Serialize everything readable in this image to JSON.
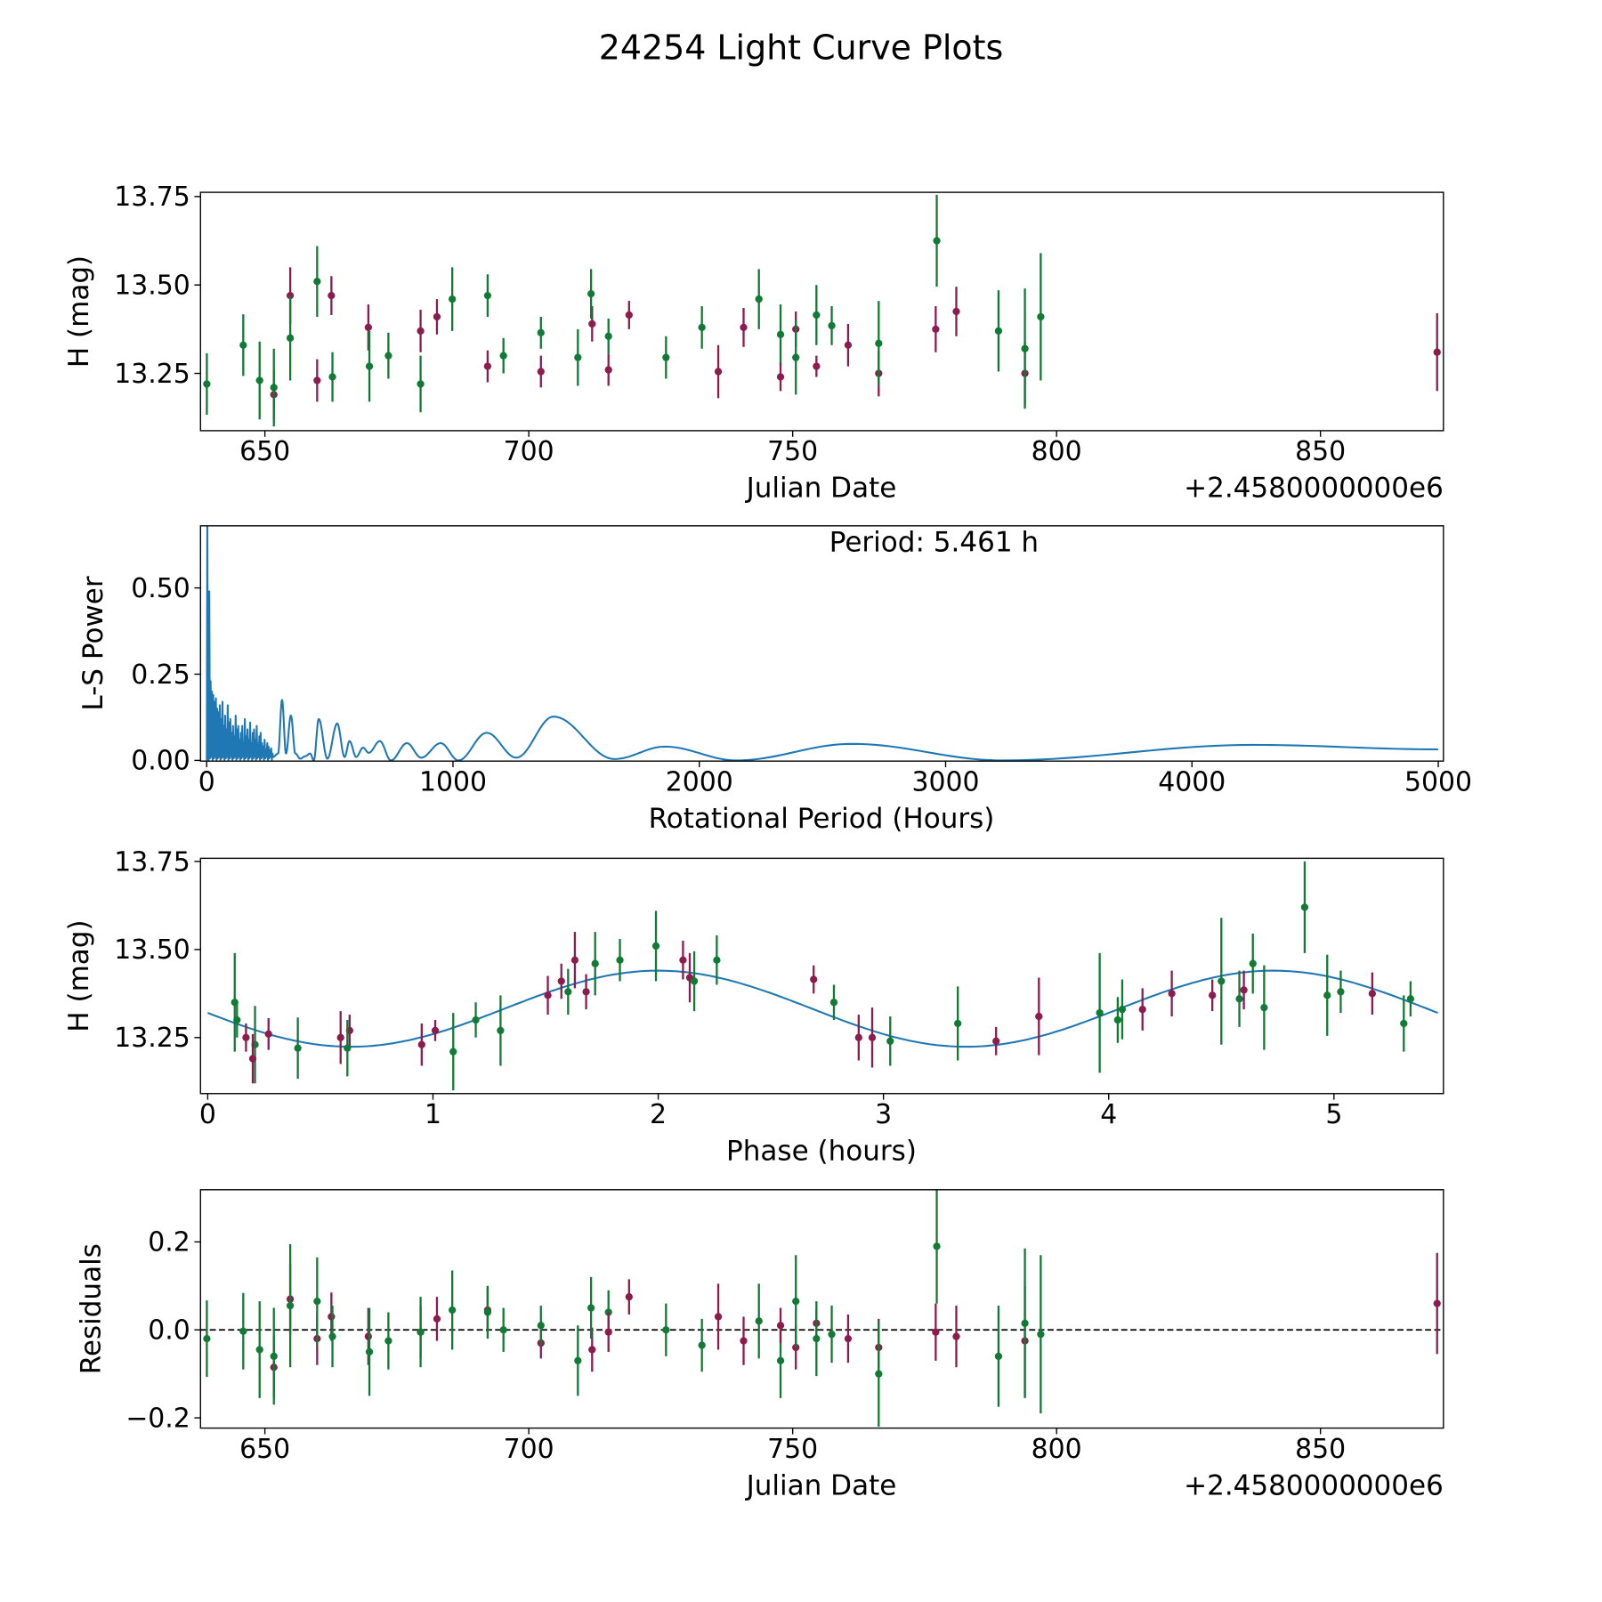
{
  "title": "24254 Light Curve Plots",
  "colors": {
    "green": "#117a35",
    "maroon": "#8c1b4e",
    "fit": "#1f77b4",
    "periodogram": "#1f77b4"
  },
  "chart_data": [
    {
      "type": "scatter",
      "name": "light-curve",
      "xlabel": "Julian Date",
      "ylabel": "H (mag)",
      "x_offset_label": "+2.4580000000e6",
      "xlim": [
        637.8,
        873.3
      ],
      "ylim": [
        13.088,
        13.762
      ],
      "xticks": [
        {
          "v": 650,
          "label": "650"
        },
        {
          "v": 700,
          "label": "700"
        },
        {
          "v": 750,
          "label": "750"
        },
        {
          "v": 800,
          "label": "800"
        },
        {
          "v": 850,
          "label": "850"
        }
      ],
      "yticks": [
        {
          "v": 13.25,
          "label": "13.25"
        },
        {
          "v": 13.5,
          "label": "13.50"
        },
        {
          "v": 13.75,
          "label": "13.75"
        }
      ],
      "points": [
        [
          639.0,
          13.22,
          0.087,
          "g"
        ],
        [
          645.9,
          13.33,
          0.087,
          "g"
        ],
        [
          649.0,
          13.23,
          0.11,
          "g"
        ],
        [
          651.7,
          13.19,
          0.07,
          "m"
        ],
        [
          651.7,
          13.21,
          0.11,
          "g"
        ],
        [
          654.8,
          13.47,
          0.08,
          "m"
        ],
        [
          654.8,
          13.35,
          0.12,
          "g"
        ],
        [
          659.9,
          13.23,
          0.06,
          "m"
        ],
        [
          659.9,
          13.51,
          0.1,
          "g"
        ],
        [
          662.6,
          13.47,
          0.055,
          "m"
        ],
        [
          662.8,
          13.24,
          0.07,
          "g"
        ],
        [
          669.6,
          13.38,
          0.065,
          "m"
        ],
        [
          669.8,
          13.27,
          0.1,
          "g"
        ],
        [
          673.4,
          13.3,
          0.065,
          "g"
        ],
        [
          679.5,
          13.37,
          0.06,
          "m"
        ],
        [
          679.5,
          13.22,
          0.08,
          "g"
        ],
        [
          682.6,
          13.41,
          0.05,
          "m"
        ],
        [
          685.5,
          13.46,
          0.09,
          "g"
        ],
        [
          692.2,
          13.27,
          0.045,
          "m"
        ],
        [
          692.2,
          13.47,
          0.06,
          "g"
        ],
        [
          695.2,
          13.3,
          0.05,
          "g"
        ],
        [
          702.3,
          13.255,
          0.045,
          "m"
        ],
        [
          702.3,
          13.365,
          0.045,
          "g"
        ],
        [
          709.3,
          13.295,
          0.08,
          "g"
        ],
        [
          712.0,
          13.39,
          0.05,
          "m"
        ],
        [
          711.8,
          13.475,
          0.07,
          "g"
        ],
        [
          715.1,
          13.355,
          0.05,
          "g"
        ],
        [
          715.1,
          13.26,
          0.045,
          "m"
        ],
        [
          719.0,
          13.415,
          0.04,
          "m"
        ],
        [
          726.0,
          13.295,
          0.06,
          "g"
        ],
        [
          732.8,
          13.38,
          0.06,
          "g"
        ],
        [
          735.9,
          13.255,
          0.075,
          "m"
        ],
        [
          740.7,
          13.38,
          0.055,
          "m"
        ],
        [
          743.6,
          13.46,
          0.085,
          "g"
        ],
        [
          747.7,
          13.36,
          0.085,
          "g"
        ],
        [
          747.7,
          13.24,
          0.04,
          "m"
        ],
        [
          750.6,
          13.375,
          0.05,
          "m"
        ],
        [
          750.6,
          13.295,
          0.105,
          "g"
        ],
        [
          754.5,
          13.27,
          0.03,
          "m"
        ],
        [
          754.5,
          13.415,
          0.085,
          "g"
        ],
        [
          757.4,
          13.385,
          0.055,
          "g"
        ],
        [
          760.5,
          13.33,
          0.06,
          "m"
        ],
        [
          766.3,
          13.25,
          0.065,
          "m"
        ],
        [
          766.3,
          13.335,
          0.12,
          "g"
        ],
        [
          777.3,
          13.625,
          0.13,
          "g"
        ],
        [
          777.1,
          13.375,
          0.065,
          "m"
        ],
        [
          781.0,
          13.425,
          0.07,
          "m"
        ],
        [
          789.0,
          13.37,
          0.115,
          "g"
        ],
        [
          794.0,
          13.25,
          0.09,
          "m"
        ],
        [
          794.0,
          13.32,
          0.17,
          "g"
        ],
        [
          797.0,
          13.41,
          0.18,
          "g"
        ],
        [
          872.1,
          13.31,
          0.11,
          "m"
        ]
      ]
    },
    {
      "type": "line",
      "name": "periodogram",
      "xlabel": "Rotational Period (Hours)",
      "ylabel": "L-S Power",
      "annotation": "Period: 5.461 h",
      "xlim": [
        -25,
        5021
      ],
      "ylim": [
        -0.002,
        0.68
      ],
      "xticks": [
        {
          "v": 0,
          "label": "0"
        },
        {
          "v": 1000,
          "label": "1000"
        },
        {
          "v": 2000,
          "label": "2000"
        },
        {
          "v": 3000,
          "label": "3000"
        },
        {
          "v": 4000,
          "label": "4000"
        },
        {
          "v": 5000,
          "label": "5000"
        }
      ],
      "yticks": [
        {
          "v": 0,
          "label": "0.00"
        },
        {
          "v": 0.25,
          "label": "0.25"
        },
        {
          "v": 0.5,
          "label": "0.50"
        }
      ],
      "main_peak": {
        "period": 2.7,
        "power": 0.75
      },
      "noisy_region": {
        "from": 8,
        "to": 270,
        "peak_powers": [
          0.49,
          0.23,
          0.2,
          0.19,
          0.17,
          0.18,
          0.15,
          0.14,
          0.16,
          0.12,
          0.17,
          0.1,
          0.13,
          0.09,
          0.16,
          0.11,
          0.12,
          0.08,
          0.1,
          0.07,
          0.13,
          0.09,
          0.1,
          0.06,
          0.08,
          0.1,
          0.05,
          0.12,
          0.07,
          0.09,
          0.06,
          0.11,
          0.05,
          0.08,
          0.09,
          0.06,
          0.1,
          0.05,
          0.07,
          0.08,
          0.05,
          0.04,
          0.06,
          0.03,
          0.05,
          0.04,
          0.03,
          0.035,
          0.02
        ]
      },
      "curve": [
        [
          270,
          0.01
        ],
        [
          290,
          0.02
        ],
        [
          306,
          0.175
        ],
        [
          322,
          0.02
        ],
        [
          342,
          0.13
        ],
        [
          360,
          0.02
        ],
        [
          380,
          0.005
        ],
        [
          400,
          0.012
        ],
        [
          420,
          0.02
        ],
        [
          435,
          0.0
        ],
        [
          455,
          0.12
        ],
        [
          490,
          0.005
        ],
        [
          530,
          0.107
        ],
        [
          560,
          0.01
        ],
        [
          580,
          0.056
        ],
        [
          607,
          0.01
        ],
        [
          635,
          0.037
        ],
        [
          658,
          0.022
        ],
        [
          703,
          0.056
        ],
        [
          748,
          0.0
        ],
        [
          813,
          0.05
        ],
        [
          871,
          0.008
        ],
        [
          950,
          0.05
        ],
        [
          1022,
          0.0
        ],
        [
          1137,
          0.08
        ],
        [
          1257,
          0.008
        ],
        [
          1408,
          0.127
        ],
        [
          1655,
          0.004
        ],
        [
          1860,
          0.04
        ],
        [
          2150,
          0.0
        ],
        [
          2620,
          0.048
        ],
        [
          3230,
          0.0
        ],
        [
          4250,
          0.045
        ],
        [
          5000,
          0.032
        ]
      ]
    },
    {
      "type": "scatter",
      "name": "phased-light-curve",
      "xlabel": "Phase (hours)",
      "ylabel": "H (mag)",
      "xlim": [
        -0.032,
        5.486
      ],
      "ylim": [
        13.091,
        13.759
      ],
      "xticks": [
        {
          "v": 0,
          "label": "0"
        },
        {
          "v": 1,
          "label": "1"
        },
        {
          "v": 2,
          "label": "2"
        },
        {
          "v": 3,
          "label": "3"
        },
        {
          "v": 4,
          "label": "4"
        },
        {
          "v": 5,
          "label": "5"
        }
      ],
      "yticks": [
        {
          "v": 13.25,
          "label": "13.25"
        },
        {
          "v": 13.5,
          "label": "13.50"
        },
        {
          "v": 13.75,
          "label": "13.75"
        }
      ],
      "fit": {
        "mean": 13.332,
        "amplitude": 0.108,
        "peak_phase": 2.0,
        "period_h": 5.461
      },
      "points": [
        [
          0.12,
          13.35,
          0.14,
          "g"
        ],
        [
          0.13,
          13.3,
          0.05,
          "g"
        ],
        [
          0.17,
          13.25,
          0.04,
          "m"
        ],
        [
          0.21,
          13.23,
          0.11,
          "g"
        ],
        [
          0.2,
          13.19,
          0.07,
          "m"
        ],
        [
          0.27,
          13.26,
          0.045,
          "m"
        ],
        [
          0.4,
          13.22,
          0.087,
          "g"
        ],
        [
          0.59,
          13.25,
          0.075,
          "m"
        ],
        [
          0.63,
          13.27,
          0.045,
          "m"
        ],
        [
          0.62,
          13.22,
          0.08,
          "g"
        ],
        [
          0.95,
          13.23,
          0.06,
          "m"
        ],
        [
          1.01,
          13.27,
          0.03,
          "m"
        ],
        [
          1.09,
          13.21,
          0.11,
          "g"
        ],
        [
          1.19,
          13.3,
          0.05,
          "g"
        ],
        [
          1.3,
          13.27,
          0.1,
          "g"
        ],
        [
          1.51,
          13.37,
          0.055,
          "m"
        ],
        [
          1.57,
          13.41,
          0.05,
          "m"
        ],
        [
          1.6,
          13.38,
          0.065,
          "g"
        ],
        [
          1.63,
          13.47,
          0.08,
          "m"
        ],
        [
          1.68,
          13.38,
          0.05,
          "m"
        ],
        [
          1.72,
          13.46,
          0.09,
          "g"
        ],
        [
          1.83,
          13.47,
          0.06,
          "g"
        ],
        [
          1.99,
          13.51,
          0.1,
          "g"
        ],
        [
          2.11,
          13.47,
          0.055,
          "m"
        ],
        [
          2.14,
          13.42,
          0.07,
          "m"
        ],
        [
          2.16,
          13.41,
          0.085,
          "g"
        ],
        [
          2.26,
          13.47,
          0.07,
          "g"
        ],
        [
          2.69,
          13.415,
          0.04,
          "m"
        ],
        [
          2.78,
          13.35,
          0.05,
          "g"
        ],
        [
          2.89,
          13.25,
          0.065,
          "m"
        ],
        [
          2.95,
          13.25,
          0.085,
          "m"
        ],
        [
          3.03,
          13.24,
          0.07,
          "g"
        ],
        [
          3.33,
          13.29,
          0.105,
          "g"
        ],
        [
          3.5,
          13.24,
          0.04,
          "m"
        ],
        [
          3.69,
          13.31,
          0.11,
          "m"
        ],
        [
          3.96,
          13.32,
          0.17,
          "g"
        ],
        [
          4.04,
          13.3,
          0.065,
          "g"
        ],
        [
          4.06,
          13.33,
          0.085,
          "g"
        ],
        [
          4.15,
          13.33,
          0.06,
          "m"
        ],
        [
          4.28,
          13.375,
          0.065,
          "m"
        ],
        [
          4.46,
          13.37,
          0.045,
          "m"
        ],
        [
          4.5,
          13.41,
          0.18,
          "g"
        ],
        [
          4.58,
          13.36,
          0.08,
          "g"
        ],
        [
          4.6,
          13.385,
          0.055,
          "m"
        ],
        [
          4.64,
          13.46,
          0.085,
          "g"
        ],
        [
          4.69,
          13.335,
          0.12,
          "g"
        ],
        [
          4.87,
          13.62,
          0.13,
          "g"
        ],
        [
          4.97,
          13.37,
          0.115,
          "g"
        ],
        [
          5.03,
          13.38,
          0.06,
          "g"
        ],
        [
          5.17,
          13.375,
          0.06,
          "m"
        ],
        [
          5.31,
          13.29,
          0.08,
          "g"
        ],
        [
          5.34,
          13.36,
          0.05,
          "g"
        ]
      ]
    },
    {
      "type": "scatter",
      "name": "residuals",
      "xlabel": "Julian Date",
      "ylabel": "Residuals",
      "x_offset_label": "+2.4580000000e6",
      "xlim": [
        637.8,
        873.3
      ],
      "ylim": [
        -0.2233,
        0.3186
      ],
      "xticks": [
        {
          "v": 650,
          "label": "650"
        },
        {
          "v": 700,
          "label": "700"
        },
        {
          "v": 750,
          "label": "750"
        },
        {
          "v": 800,
          "label": "800"
        },
        {
          "v": 850,
          "label": "850"
        }
      ],
      "yticks": [
        {
          "v": -0.2,
          "label": "−0.2"
        },
        {
          "v": 0,
          "label": "0.0"
        },
        {
          "v": 0.2,
          "label": "0.2"
        }
      ],
      "zero_line": 0,
      "points": [
        [
          639.0,
          -0.02,
          0.087,
          "g"
        ],
        [
          645.9,
          -0.003,
          0.087,
          "g"
        ],
        [
          649.0,
          -0.045,
          0.11,
          "g"
        ],
        [
          651.7,
          -0.085,
          0.07,
          "m"
        ],
        [
          651.7,
          -0.06,
          0.11,
          "g"
        ],
        [
          654.8,
          0.07,
          0.08,
          "m"
        ],
        [
          654.8,
          0.055,
          0.14,
          "g"
        ],
        [
          659.9,
          -0.02,
          0.06,
          "m"
        ],
        [
          659.9,
          0.065,
          0.1,
          "g"
        ],
        [
          662.6,
          0.03,
          0.055,
          "m"
        ],
        [
          662.8,
          -0.015,
          0.07,
          "g"
        ],
        [
          669.6,
          -0.015,
          0.065,
          "m"
        ],
        [
          669.8,
          -0.05,
          0.1,
          "g"
        ],
        [
          673.4,
          -0.025,
          0.065,
          "g"
        ],
        [
          679.5,
          -0.005,
          0.06,
          "m"
        ],
        [
          679.5,
          -0.005,
          0.08,
          "g"
        ],
        [
          682.6,
          0.025,
          0.05,
          "m"
        ],
        [
          685.5,
          0.045,
          0.09,
          "g"
        ],
        [
          692.2,
          0.045,
          0.05,
          "m"
        ],
        [
          692.2,
          0.04,
          0.06,
          "g"
        ],
        [
          695.2,
          0.0,
          0.05,
          "g"
        ],
        [
          702.3,
          -0.03,
          0.035,
          "m"
        ],
        [
          702.3,
          0.01,
          0.045,
          "g"
        ],
        [
          709.3,
          -0.07,
          0.08,
          "g"
        ],
        [
          712.0,
          -0.045,
          0.05,
          "m"
        ],
        [
          711.8,
          0.05,
          0.07,
          "g"
        ],
        [
          715.1,
          0.04,
          0.05,
          "g"
        ],
        [
          715.1,
          -0.005,
          0.045,
          "m"
        ],
        [
          719.0,
          0.075,
          0.04,
          "m"
        ],
        [
          726.0,
          0.0,
          0.06,
          "g"
        ],
        [
          732.8,
          -0.035,
          0.06,
          "g"
        ],
        [
          735.9,
          0.03,
          0.075,
          "m"
        ],
        [
          740.7,
          -0.025,
          0.055,
          "m"
        ],
        [
          743.6,
          0.02,
          0.085,
          "g"
        ],
        [
          747.7,
          -0.07,
          0.085,
          "g"
        ],
        [
          747.7,
          0.01,
          0.04,
          "m"
        ],
        [
          750.6,
          -0.04,
          0.05,
          "m"
        ],
        [
          750.6,
          0.065,
          0.105,
          "g"
        ],
        [
          754.5,
          0.015,
          0.03,
          "m"
        ],
        [
          754.5,
          -0.02,
          0.085,
          "g"
        ],
        [
          757.4,
          -0.01,
          0.065,
          "g"
        ],
        [
          760.5,
          -0.02,
          0.055,
          "m"
        ],
        [
          766.3,
          -0.04,
          0.065,
          "m"
        ],
        [
          766.3,
          -0.1,
          0.12,
          "g"
        ],
        [
          777.3,
          0.19,
          0.13,
          "g"
        ],
        [
          777.1,
          -0.005,
          0.065,
          "m"
        ],
        [
          781.0,
          -0.015,
          0.07,
          "m"
        ],
        [
          789.0,
          -0.06,
          0.115,
          "g"
        ],
        [
          794.0,
          -0.025,
          0.125,
          "m"
        ],
        [
          794.0,
          0.015,
          0.17,
          "g"
        ],
        [
          797.0,
          -0.01,
          0.18,
          "g"
        ],
        [
          872.1,
          0.06,
          0.115,
          "m"
        ]
      ]
    }
  ]
}
